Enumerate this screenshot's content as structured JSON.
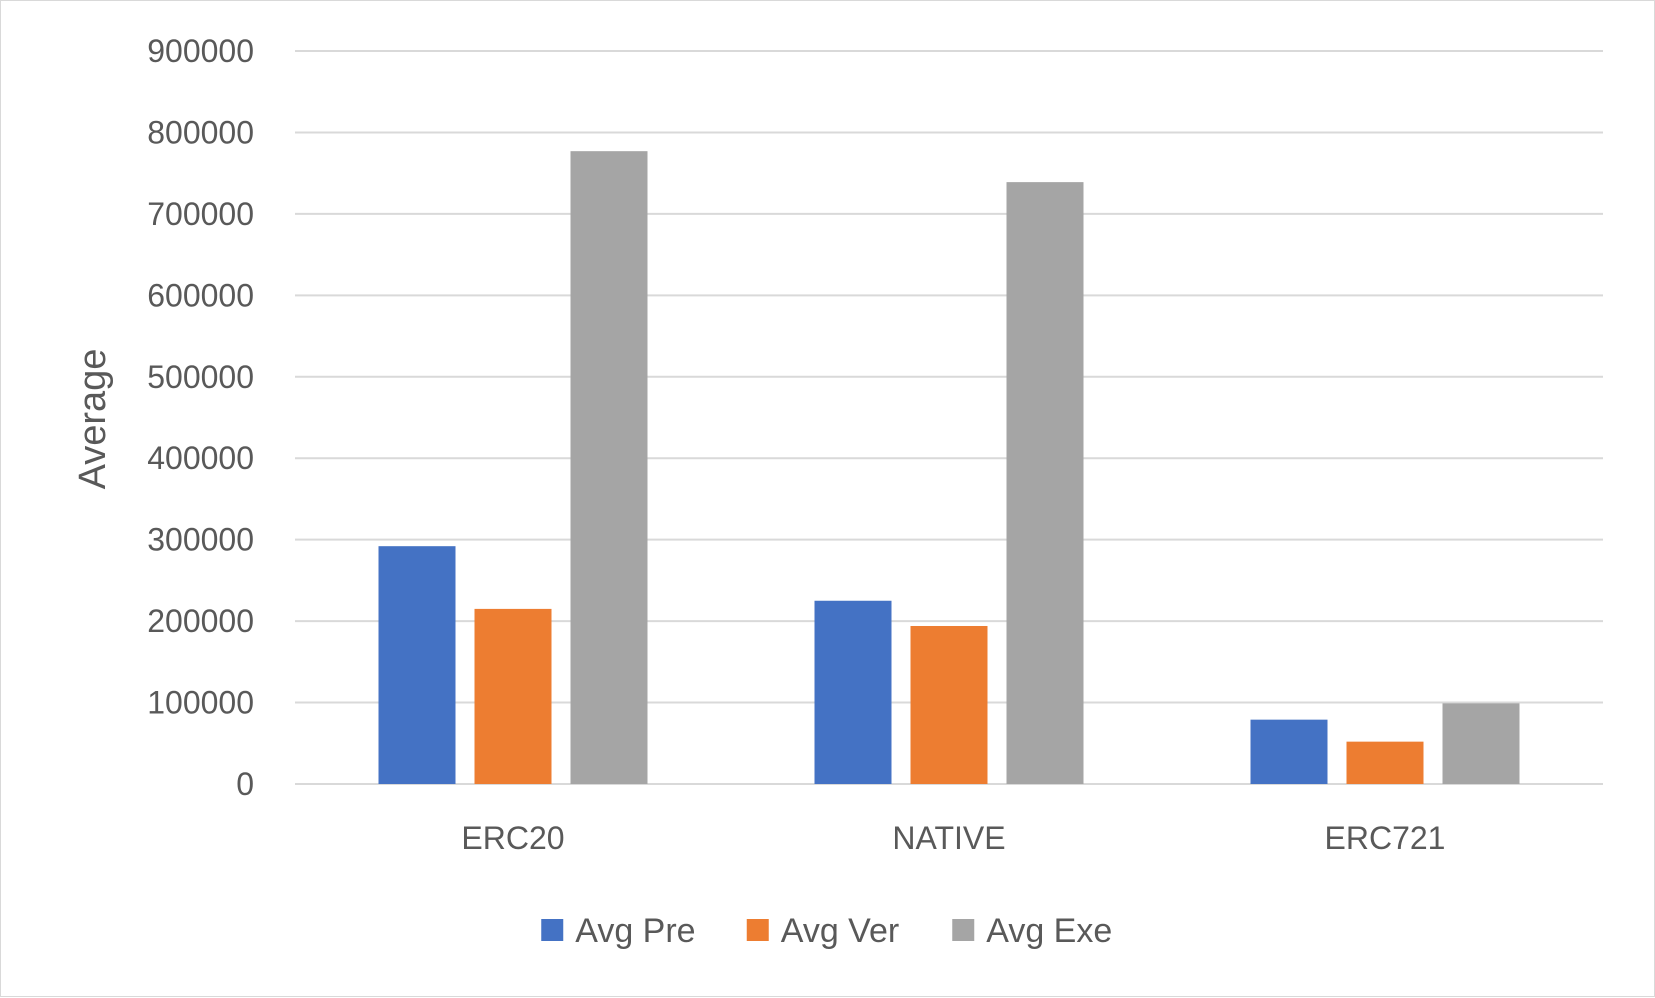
{
  "chart_data": {
    "type": "bar",
    "title": "",
    "xlabel": "",
    "ylabel": "Average",
    "ylim": [
      0,
      900000
    ],
    "yticks": [
      0,
      100000,
      200000,
      300000,
      400000,
      500000,
      600000,
      700000,
      800000,
      900000
    ],
    "grid": true,
    "legend_position": "bottom",
    "categories": [
      "ERC20",
      "NATIVE",
      "ERC721"
    ],
    "series": [
      {
        "name": "Avg Pre",
        "color": "#4472c4",
        "values": [
          292000,
          225000,
          79000
        ]
      },
      {
        "name": "Avg Ver",
        "color": "#ed7d31",
        "values": [
          215000,
          194000,
          52000
        ]
      },
      {
        "name": "Avg Exe",
        "color": "#a5a5a5",
        "values": [
          777000,
          739000,
          99000
        ]
      }
    ]
  }
}
